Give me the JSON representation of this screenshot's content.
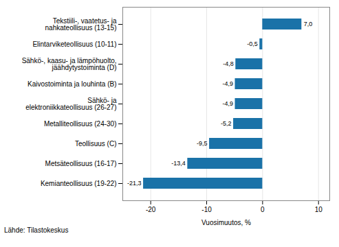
{
  "chart_data": {
    "type": "bar",
    "orientation": "horizontal",
    "categories": [
      "Kemianteollisuus (19-22)",
      "Metsäteollisuus (16-17)",
      "Teollisuus (C)",
      "Metalliteollisuus (24-30)",
      "Sähkö- ja\nelektroniikkateollisuus (26-27)",
      "Kaivostoiminta ja louhinta (B)",
      "Sähkö-, kaasu- ja lämpöhuolto,\njäähdytystoiminta (D)",
      "Elintarviketeollisuus (10-11)",
      "Tekstiili-, vaatetus- ja\nnahkateollisuus (13-15)"
    ],
    "values": [
      -21.3,
      -13.4,
      -9.5,
      -5.2,
      -4.9,
      -4.9,
      -4.8,
      -0.5,
      7.0
    ],
    "value_labels": [
      "-21,3",
      "-13,4",
      "-9,5",
      "-5,2",
      "-4,9",
      "-4,9",
      "-4,8",
      "-0,5",
      "7,0"
    ],
    "data_labels": true,
    "color": "#1a72a8",
    "xlabel": "Vuosimuutos, %",
    "xlim": [
      -25,
      12
    ],
    "xticks": [
      -20,
      -10,
      0,
      10
    ],
    "grid": true,
    "caption": "Lähde: Tilastokeskus"
  }
}
